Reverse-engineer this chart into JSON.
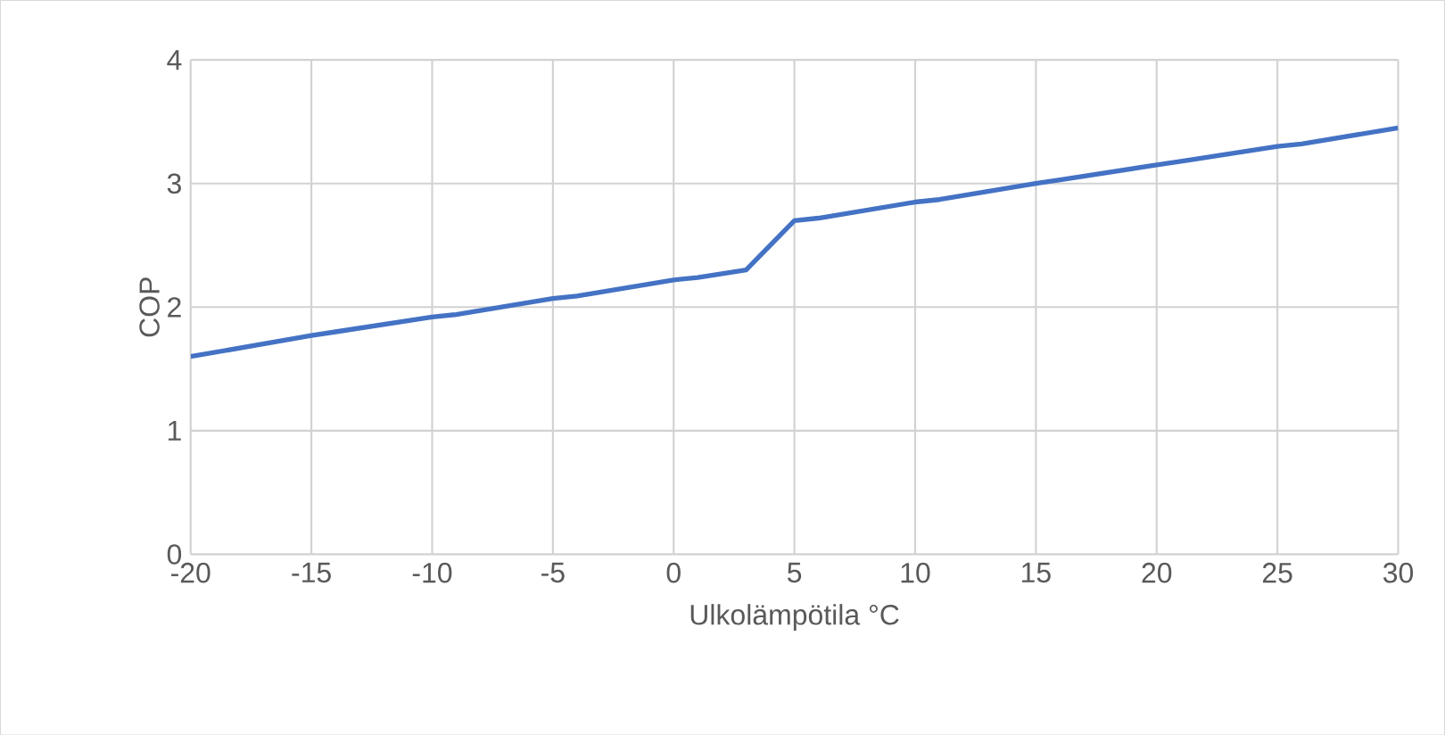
{
  "chart_data": {
    "type": "line",
    "xlabel": "Ulkolämpötila °C",
    "ylabel": "COP",
    "x": [
      -20,
      -15,
      -14,
      -10,
      -9,
      -5,
      -4,
      0,
      1,
      3,
      5,
      6,
      10,
      11,
      15,
      16,
      20,
      21,
      25,
      26,
      30
    ],
    "series": [
      {
        "color": "#4472c4",
        "values": [
          1.6,
          1.77,
          1.8,
          1.92,
          1.94,
          2.07,
          2.09,
          2.22,
          2.24,
          2.3,
          2.7,
          2.72,
          2.85,
          2.87,
          3.0,
          3.03,
          3.15,
          3.18,
          3.3,
          3.32,
          3.45
        ]
      }
    ],
    "xlim": [
      -20,
      30
    ],
    "ylim": [
      0,
      4
    ],
    "xticks": [
      -20,
      -15,
      -10,
      -5,
      0,
      5,
      10,
      15,
      20,
      25,
      30
    ],
    "yticks": [
      0,
      1,
      2,
      3,
      4
    ],
    "grid": true,
    "legend": false,
    "marker": "none",
    "line_style": "solid"
  }
}
